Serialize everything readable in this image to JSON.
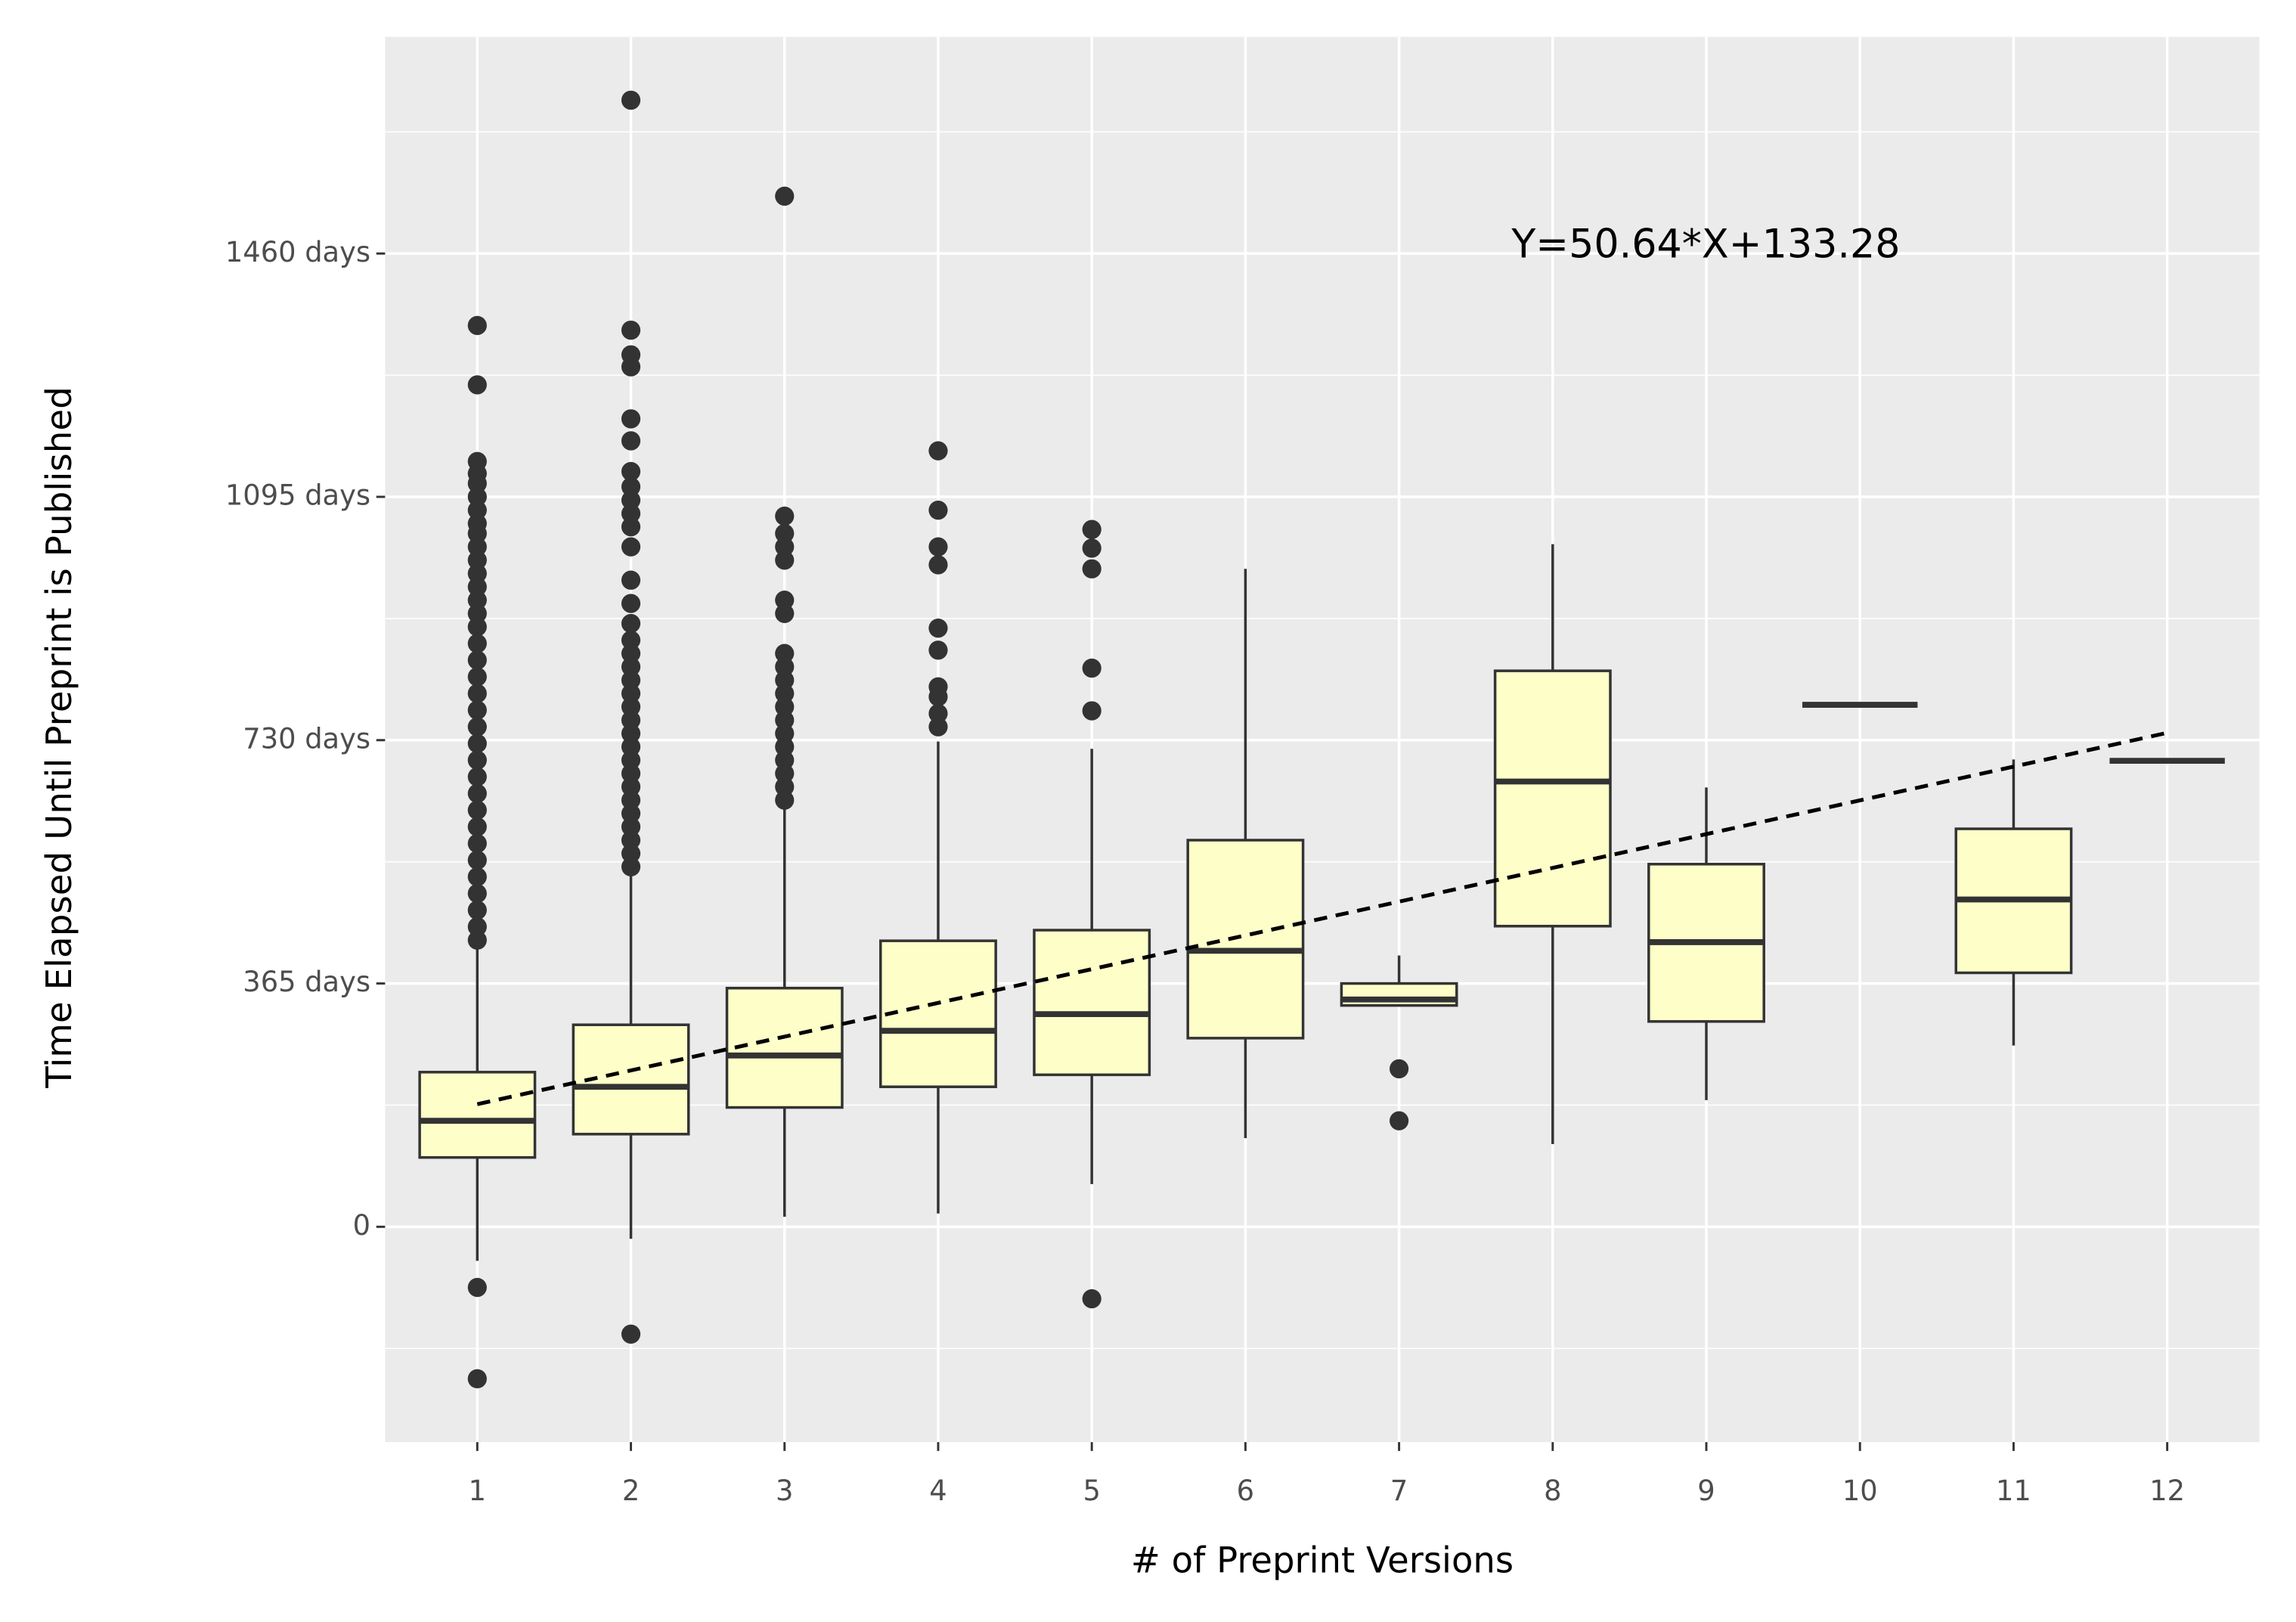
{
  "chart_data": {
    "type": "box",
    "x_label": "# of Preprint Versions",
    "y_label": "Time Elapsed Until Preprint is Published",
    "categories": [
      "1",
      "2",
      "3",
      "4",
      "5",
      "6",
      "7",
      "8",
      "9",
      "10",
      "11",
      "12"
    ],
    "boxes": [
      {
        "q1": 104,
        "median": 159,
        "q3": 232,
        "whisker_low": -51,
        "whisker_high": 425,
        "outliers": [
          1352,
          1263,
          1148,
          1130,
          1115,
          1095,
          1075,
          1055,
          1040,
          1020,
          1000,
          980,
          960,
          940,
          920,
          900,
          875,
          850,
          825,
          800,
          775,
          750,
          725,
          700,
          675,
          650,
          625,
          600,
          575,
          550,
          525,
          500,
          475,
          450,
          430,
          -91,
          -228
        ]
      },
      {
        "q1": 139,
        "median": 210,
        "q3": 303,
        "whisker_low": -18,
        "whisker_high": 535,
        "outliers": [
          1690,
          1345,
          1308,
          1290,
          1212,
          1179,
          1133,
          1110,
          1090,
          1070,
          1050,
          1020,
          970,
          935,
          905,
          880,
          860,
          840,
          820,
          800,
          780,
          760,
          740,
          720,
          700,
          680,
          660,
          640,
          620,
          600,
          580,
          560,
          540,
          -161
        ]
      },
      {
        "q1": 179,
        "median": 257,
        "q3": 358,
        "whisker_low": 15,
        "whisker_high": 635,
        "outliers": [
          1546,
          1066,
          1040,
          1020,
          1000,
          940,
          920,
          860,
          840,
          820,
          800,
          780,
          760,
          740,
          720,
          700,
          680,
          660,
          640
        ]
      },
      {
        "q1": 210,
        "median": 294,
        "q3": 429,
        "whisker_low": 20,
        "whisker_high": 728,
        "outliers": [
          1164,
          1075,
          1020,
          993,
          898,
          865,
          810,
          795,
          770,
          750
        ]
      },
      {
        "q1": 228,
        "median": 319,
        "q3": 445,
        "whisker_low": 64,
        "whisker_high": 717,
        "outliers": [
          1046,
          1018,
          987,
          838,
          774,
          -108
        ]
      },
      {
        "q1": 283,
        "median": 414,
        "q3": 580,
        "whisker_low": 133,
        "whisker_high": 987,
        "outliers": []
      },
      {
        "q1": 332,
        "median": 341,
        "q3": 365,
        "whisker_low": 332,
        "whisker_high": 407,
        "outliers": [
          237,
          159
        ]
      },
      {
        "q1": 451,
        "median": 668,
        "q3": 834,
        "whisker_low": 124,
        "whisker_high": 1024,
        "outliers": []
      },
      {
        "q1": 308,
        "median": 427,
        "q3": 544,
        "whisker_low": 190,
        "whisker_high": 659,
        "outliers": []
      },
      {
        "q1": 783,
        "median": 783,
        "q3": 783,
        "whisker_low": 783,
        "whisker_high": 783,
        "outliers": []
      },
      {
        "q1": 381,
        "median": 491,
        "q3": 597,
        "whisker_low": 272,
        "whisker_high": 701,
        "outliers": []
      },
      {
        "q1": 699,
        "median": 699,
        "q3": 699,
        "whisker_low": 699,
        "whisker_high": 699,
        "outliers": []
      }
    ],
    "box_color": "#fefec9",
    "line_color": "#333333",
    "trend": {
      "label": "Y=50.64*X+133.28",
      "slope": 50.64,
      "intercept": 133.28
    },
    "ylim": [
      -323,
      1785
    ],
    "yticks": [
      0,
      {
        "value": 365,
        "label": "365 days"
      },
      {
        "value": 730,
        "label": "730 days"
      },
      {
        "value": 1095,
        "label": "1095 days"
      },
      {
        "value": 1460,
        "label": "1460 days"
      }
    ],
    "grid": true,
    "minor_grid": true
  }
}
